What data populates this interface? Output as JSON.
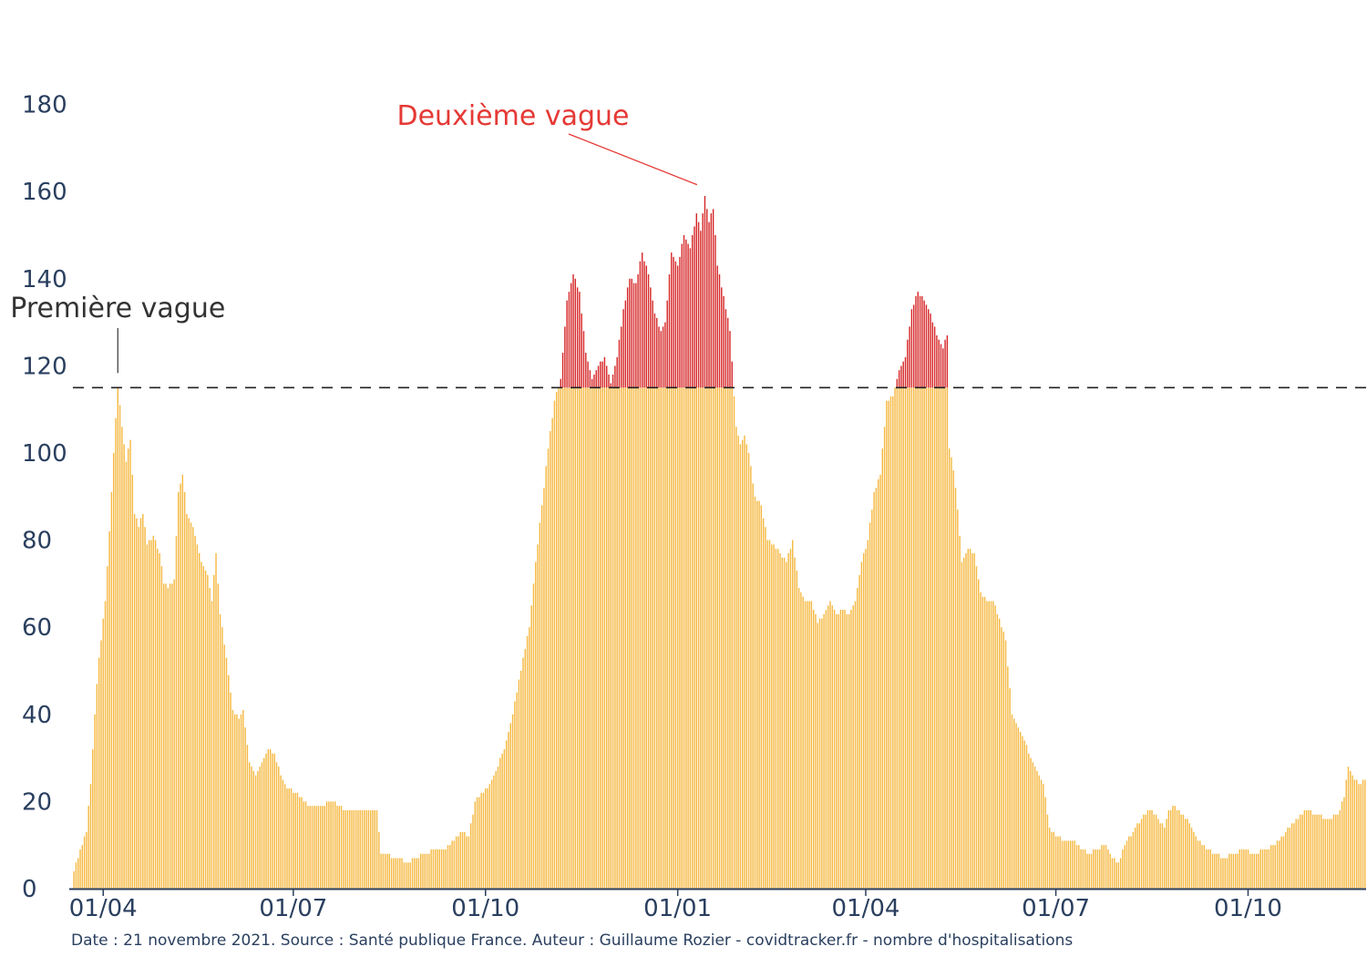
{
  "chart_data": {
    "type": "bar",
    "title": "",
    "xlabel": "",
    "ylabel": "",
    "ylim": [
      0,
      190
    ],
    "y_ticks": [
      0,
      20,
      40,
      60,
      80,
      100,
      120,
      140,
      160,
      180
    ],
    "x_tick_labels": [
      "01/04",
      "01/07",
      "01/10",
      "01/01",
      "01/04",
      "01/07",
      "01/10"
    ],
    "x_tick_day_index": [
      14,
      105,
      197,
      289,
      379,
      470,
      562
    ],
    "day_count": 619,
    "threshold": 115,
    "threshold_style": "dashed black line",
    "colors": {
      "base": "#F5B841",
      "excess": "#D62728",
      "threshold": "#222222"
    },
    "series_note": "Bars above the threshold are drawn red from the threshold upward",
    "keypoints": [
      [
        0,
        4
      ],
      [
        3,
        9
      ],
      [
        6,
        13
      ],
      [
        8,
        24
      ],
      [
        10,
        40
      ],
      [
        12,
        53
      ],
      [
        15,
        66
      ],
      [
        17,
        82
      ],
      [
        19,
        100
      ],
      [
        21,
        115
      ],
      [
        23,
        106
      ],
      [
        25,
        98
      ],
      [
        27,
        103
      ],
      [
        29,
        86
      ],
      [
        31,
        83
      ],
      [
        33,
        86
      ],
      [
        35,
        79
      ],
      [
        38,
        81
      ],
      [
        41,
        77
      ],
      [
        43,
        70
      ],
      [
        45,
        69
      ],
      [
        48,
        71
      ],
      [
        50,
        91
      ],
      [
        52,
        95
      ],
      [
        54,
        86
      ],
      [
        56,
        84
      ],
      [
        58,
        81
      ],
      [
        61,
        75
      ],
      [
        64,
        72
      ],
      [
        66,
        66
      ],
      [
        68,
        77
      ],
      [
        70,
        63
      ],
      [
        73,
        53
      ],
      [
        76,
        41
      ],
      [
        79,
        39
      ],
      [
        81,
        41
      ],
      [
        84,
        29
      ],
      [
        87,
        26
      ],
      [
        90,
        29
      ],
      [
        93,
        32
      ],
      [
        96,
        31
      ],
      [
        99,
        26
      ],
      [
        102,
        23
      ],
      [
        107,
        22
      ],
      [
        112,
        19
      ],
      [
        118,
        19
      ],
      [
        124,
        20
      ],
      [
        130,
        18
      ],
      [
        140,
        18
      ],
      [
        145,
        18
      ],
      [
        147,
        8
      ],
      [
        155,
        7
      ],
      [
        160,
        6
      ],
      [
        163,
        7
      ],
      [
        168,
        8
      ],
      [
        173,
        9
      ],
      [
        178,
        9
      ],
      [
        182,
        11
      ],
      [
        186,
        13
      ],
      [
        189,
        12
      ],
      [
        192,
        20
      ],
      [
        195,
        22
      ],
      [
        198,
        23
      ],
      [
        202,
        27
      ],
      [
        206,
        32
      ],
      [
        210,
        40
      ],
      [
        214,
        50
      ],
      [
        218,
        60
      ],
      [
        221,
        75
      ],
      [
        224,
        88
      ],
      [
        227,
        101
      ],
      [
        230,
        112
      ],
      [
        233,
        117
      ],
      [
        236,
        135
      ],
      [
        239,
        141
      ],
      [
        242,
        137
      ],
      [
        245,
        123
      ],
      [
        248,
        117
      ],
      [
        251,
        120
      ],
      [
        254,
        122
      ],
      [
        257,
        116
      ],
      [
        260,
        122
      ],
      [
        263,
        133
      ],
      [
        266,
        140
      ],
      [
        269,
        139
      ],
      [
        272,
        146
      ],
      [
        275,
        141
      ],
      [
        278,
        132
      ],
      [
        281,
        128
      ],
      [
        283,
        130
      ],
      [
        286,
        146
      ],
      [
        289,
        143
      ],
      [
        292,
        150
      ],
      [
        295,
        147
      ],
      [
        298,
        155
      ],
      [
        300,
        151
      ],
      [
        302,
        159
      ],
      [
        304,
        153
      ],
      [
        306,
        156
      ],
      [
        308,
        143
      ],
      [
        311,
        136
      ],
      [
        314,
        128
      ],
      [
        317,
        106
      ],
      [
        319,
        102
      ],
      [
        321,
        104
      ],
      [
        323,
        100
      ],
      [
        326,
        90
      ],
      [
        329,
        88
      ],
      [
        332,
        80
      ],
      [
        335,
        79
      ],
      [
        338,
        77
      ],
      [
        341,
        75
      ],
      [
        344,
        80
      ],
      [
        347,
        69
      ],
      [
        350,
        66
      ],
      [
        353,
        66
      ],
      [
        356,
        61
      ],
      [
        359,
        63
      ],
      [
        362,
        66
      ],
      [
        365,
        63
      ],
      [
        368,
        64
      ],
      [
        371,
        63
      ],
      [
        374,
        66
      ],
      [
        377,
        75
      ],
      [
        380,
        80
      ],
      [
        383,
        91
      ],
      [
        386,
        95
      ],
      [
        389,
        112
      ],
      [
        392,
        113
      ],
      [
        395,
        119
      ],
      [
        398,
        122
      ],
      [
        401,
        133
      ],
      [
        404,
        137
      ],
      [
        407,
        135
      ],
      [
        410,
        132
      ],
      [
        413,
        127
      ],
      [
        416,
        124
      ],
      [
        418,
        127
      ],
      [
        419,
        101
      ],
      [
        421,
        96
      ],
      [
        423,
        87
      ],
      [
        425,
        75
      ],
      [
        428,
        78
      ],
      [
        431,
        77
      ],
      [
        434,
        68
      ],
      [
        437,
        66
      ],
      [
        440,
        66
      ],
      [
        443,
        62
      ],
      [
        446,
        57
      ],
      [
        449,
        40
      ],
      [
        452,
        37
      ],
      [
        455,
        34
      ],
      [
        458,
        30
      ],
      [
        461,
        27
      ],
      [
        464,
        24
      ],
      [
        467,
        14
      ],
      [
        470,
        12
      ],
      [
        474,
        11
      ],
      [
        478,
        11
      ],
      [
        482,
        9
      ],
      [
        486,
        8
      ],
      [
        490,
        9
      ],
      [
        494,
        10
      ],
      [
        497,
        7
      ],
      [
        500,
        6
      ],
      [
        503,
        10
      ],
      [
        507,
        13
      ],
      [
        511,
        16
      ],
      [
        515,
        18
      ],
      [
        519,
        16
      ],
      [
        522,
        14
      ],
      [
        524,
        18
      ],
      [
        527,
        19
      ],
      [
        530,
        17
      ],
      [
        534,
        15
      ],
      [
        538,
        11
      ],
      [
        542,
        9
      ],
      [
        546,
        8
      ],
      [
        550,
        7
      ],
      [
        555,
        8
      ],
      [
        560,
        9
      ],
      [
        565,
        8
      ],
      [
        570,
        9
      ],
      [
        575,
        10
      ],
      [
        580,
        13
      ],
      [
        585,
        16
      ],
      [
        590,
        18
      ],
      [
        595,
        17
      ],
      [
        600,
        16
      ],
      [
        605,
        17
      ],
      [
        608,
        21
      ],
      [
        610,
        28
      ],
      [
        612,
        26
      ],
      [
        615,
        24
      ],
      [
        618,
        25
      ]
    ],
    "annotations": [
      {
        "text": "Première vague",
        "day": 21,
        "value": 115,
        "color": "#333333"
      },
      {
        "text": "Deuxième vague",
        "day": 300,
        "value": 162,
        "color": "#E53935"
      }
    ],
    "footer": "Date : 21 novembre 2021. Source : Santé publique France. Auteur : Guillaume Rozier - covidtracker.fr - nombre d'hospitalisations"
  }
}
